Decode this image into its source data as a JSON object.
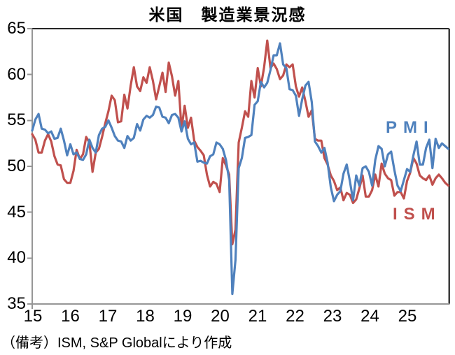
{
  "title": "米国　製造業景況感",
  "footnote": "（備考）ISM, S&P Globalにより作成",
  "colors": {
    "pmi_blue": "#4F81BD",
    "ism_red": "#C0504D",
    "axis_gray": "#969696",
    "border_top": "#262626",
    "border_right": "#3d3d3d",
    "text": "#000000",
    "background": "#ffffff"
  },
  "chart_data": {
    "type": "line",
    "title": "米国　製造業景況感",
    "xlabel": "",
    "ylabel": "",
    "ylim": [
      35,
      65
    ],
    "y_ticks": [
      35,
      40,
      45,
      50,
      55,
      60,
      65
    ],
    "x_tick_labels": [
      "15",
      "16",
      "17",
      "18",
      "19",
      "20",
      "21",
      "22",
      "23",
      "24",
      "25"
    ],
    "x_start": "2015-01",
    "x_end": "2025-12",
    "frequency": "monthly",
    "grid": false,
    "legend_position": "inline-labels",
    "series": [
      {
        "name": "PMI",
        "display_name": "ＰＭＩ",
        "color": "#4F81BD",
        "values": [
          53.9,
          55.1,
          55.7,
          54.1,
          54.0,
          53.6,
          53.8,
          53.0,
          53.1,
          54.1,
          52.8,
          51.2,
          52.4,
          51.3,
          51.5,
          50.8,
          50.7,
          51.3,
          52.9,
          52.0,
          51.5,
          53.4,
          54.1,
          54.3,
          55.0,
          54.2,
          53.3,
          52.8,
          52.7,
          52.0,
          53.3,
          52.8,
          53.1,
          54.6,
          53.9,
          55.1,
          55.5,
          55.3,
          55.6,
          56.5,
          56.4,
          55.4,
          55.3,
          54.7,
          55.6,
          55.7,
          55.3,
          53.8,
          54.9,
          53.0,
          52.4,
          52.6,
          50.5,
          50.6,
          50.4,
          50.3,
          51.1,
          51.3,
          52.6,
          52.4,
          51.9,
          50.7,
          48.5,
          36.1,
          39.8,
          49.8,
          50.9,
          53.1,
          53.2,
          53.4,
          56.7,
          57.1,
          59.2,
          58.6,
          59.1,
          60.5,
          62.1,
          62.1,
          63.4,
          61.1,
          60.7,
          58.4,
          58.3,
          57.7,
          55.5,
          57.3,
          58.8,
          59.2,
          57.0,
          52.7,
          52.2,
          51.5,
          52.0,
          50.4,
          47.7,
          46.2,
          46.9,
          47.3,
          49.2,
          50.2,
          48.4,
          46.3,
          49.0,
          47.9,
          49.8,
          50.0,
          49.4,
          47.9,
          50.7,
          52.2,
          51.9,
          50.0,
          51.3,
          51.6,
          49.6,
          47.9,
          47.3,
          48.5,
          49.7,
          49.4,
          51.2,
          52.7,
          50.2,
          50.2,
          52.0,
          52.9,
          49.8,
          53.0,
          52.0,
          52.5,
          52.2,
          51.9
        ]
      },
      {
        "name": "ISM",
        "display_name": "ＩＳＭ",
        "color": "#C0504D",
        "values": [
          53.5,
          52.9,
          51.5,
          51.5,
          52.8,
          53.5,
          52.7,
          51.1,
          50.2,
          50.1,
          48.6,
          48.2,
          48.2,
          49.5,
          51.8,
          50.8,
          51.3,
          53.2,
          52.6,
          49.4,
          51.5,
          51.9,
          53.2,
          54.7,
          56.0,
          57.7,
          57.2,
          54.8,
          54.9,
          57.8,
          56.3,
          58.8,
          60.8,
          58.7,
          58.2,
          59.7,
          59.1,
          60.8,
          59.3,
          57.3,
          58.7,
          60.2,
          58.1,
          61.3,
          59.8,
          57.7,
          59.3,
          54.1,
          56.6,
          54.2,
          55.3,
          52.8,
          52.1,
          51.7,
          51.2,
          49.1,
          47.8,
          48.3,
          48.1,
          47.2,
          50.9,
          50.1,
          49.1,
          41.5,
          43.1,
          52.6,
          54.2,
          56.0,
          55.4,
          59.3,
          57.5,
          60.7,
          58.7,
          60.8,
          63.7,
          60.7,
          61.2,
          60.6,
          59.5,
          59.9,
          61.1,
          60.8,
          61.1,
          58.7,
          57.6,
          58.6,
          57.1,
          55.4,
          56.1,
          53.0,
          52.8,
          52.8,
          50.9,
          50.2,
          49.0,
          48.4,
          47.4,
          47.7,
          46.3,
          47.1,
          46.9,
          46.0,
          46.4,
          47.6,
          49.0,
          46.7,
          46.7,
          47.4,
          49.1,
          47.8,
          50.3,
          49.2,
          48.7,
          48.5,
          46.8,
          47.2,
          47.2,
          46.5,
          48.4,
          49.3,
          50.9,
          50.3,
          49.0,
          48.7,
          48.5,
          49.0,
          48.0,
          48.7,
          49.1,
          48.7,
          48.2,
          47.9
        ]
      }
    ]
  }
}
